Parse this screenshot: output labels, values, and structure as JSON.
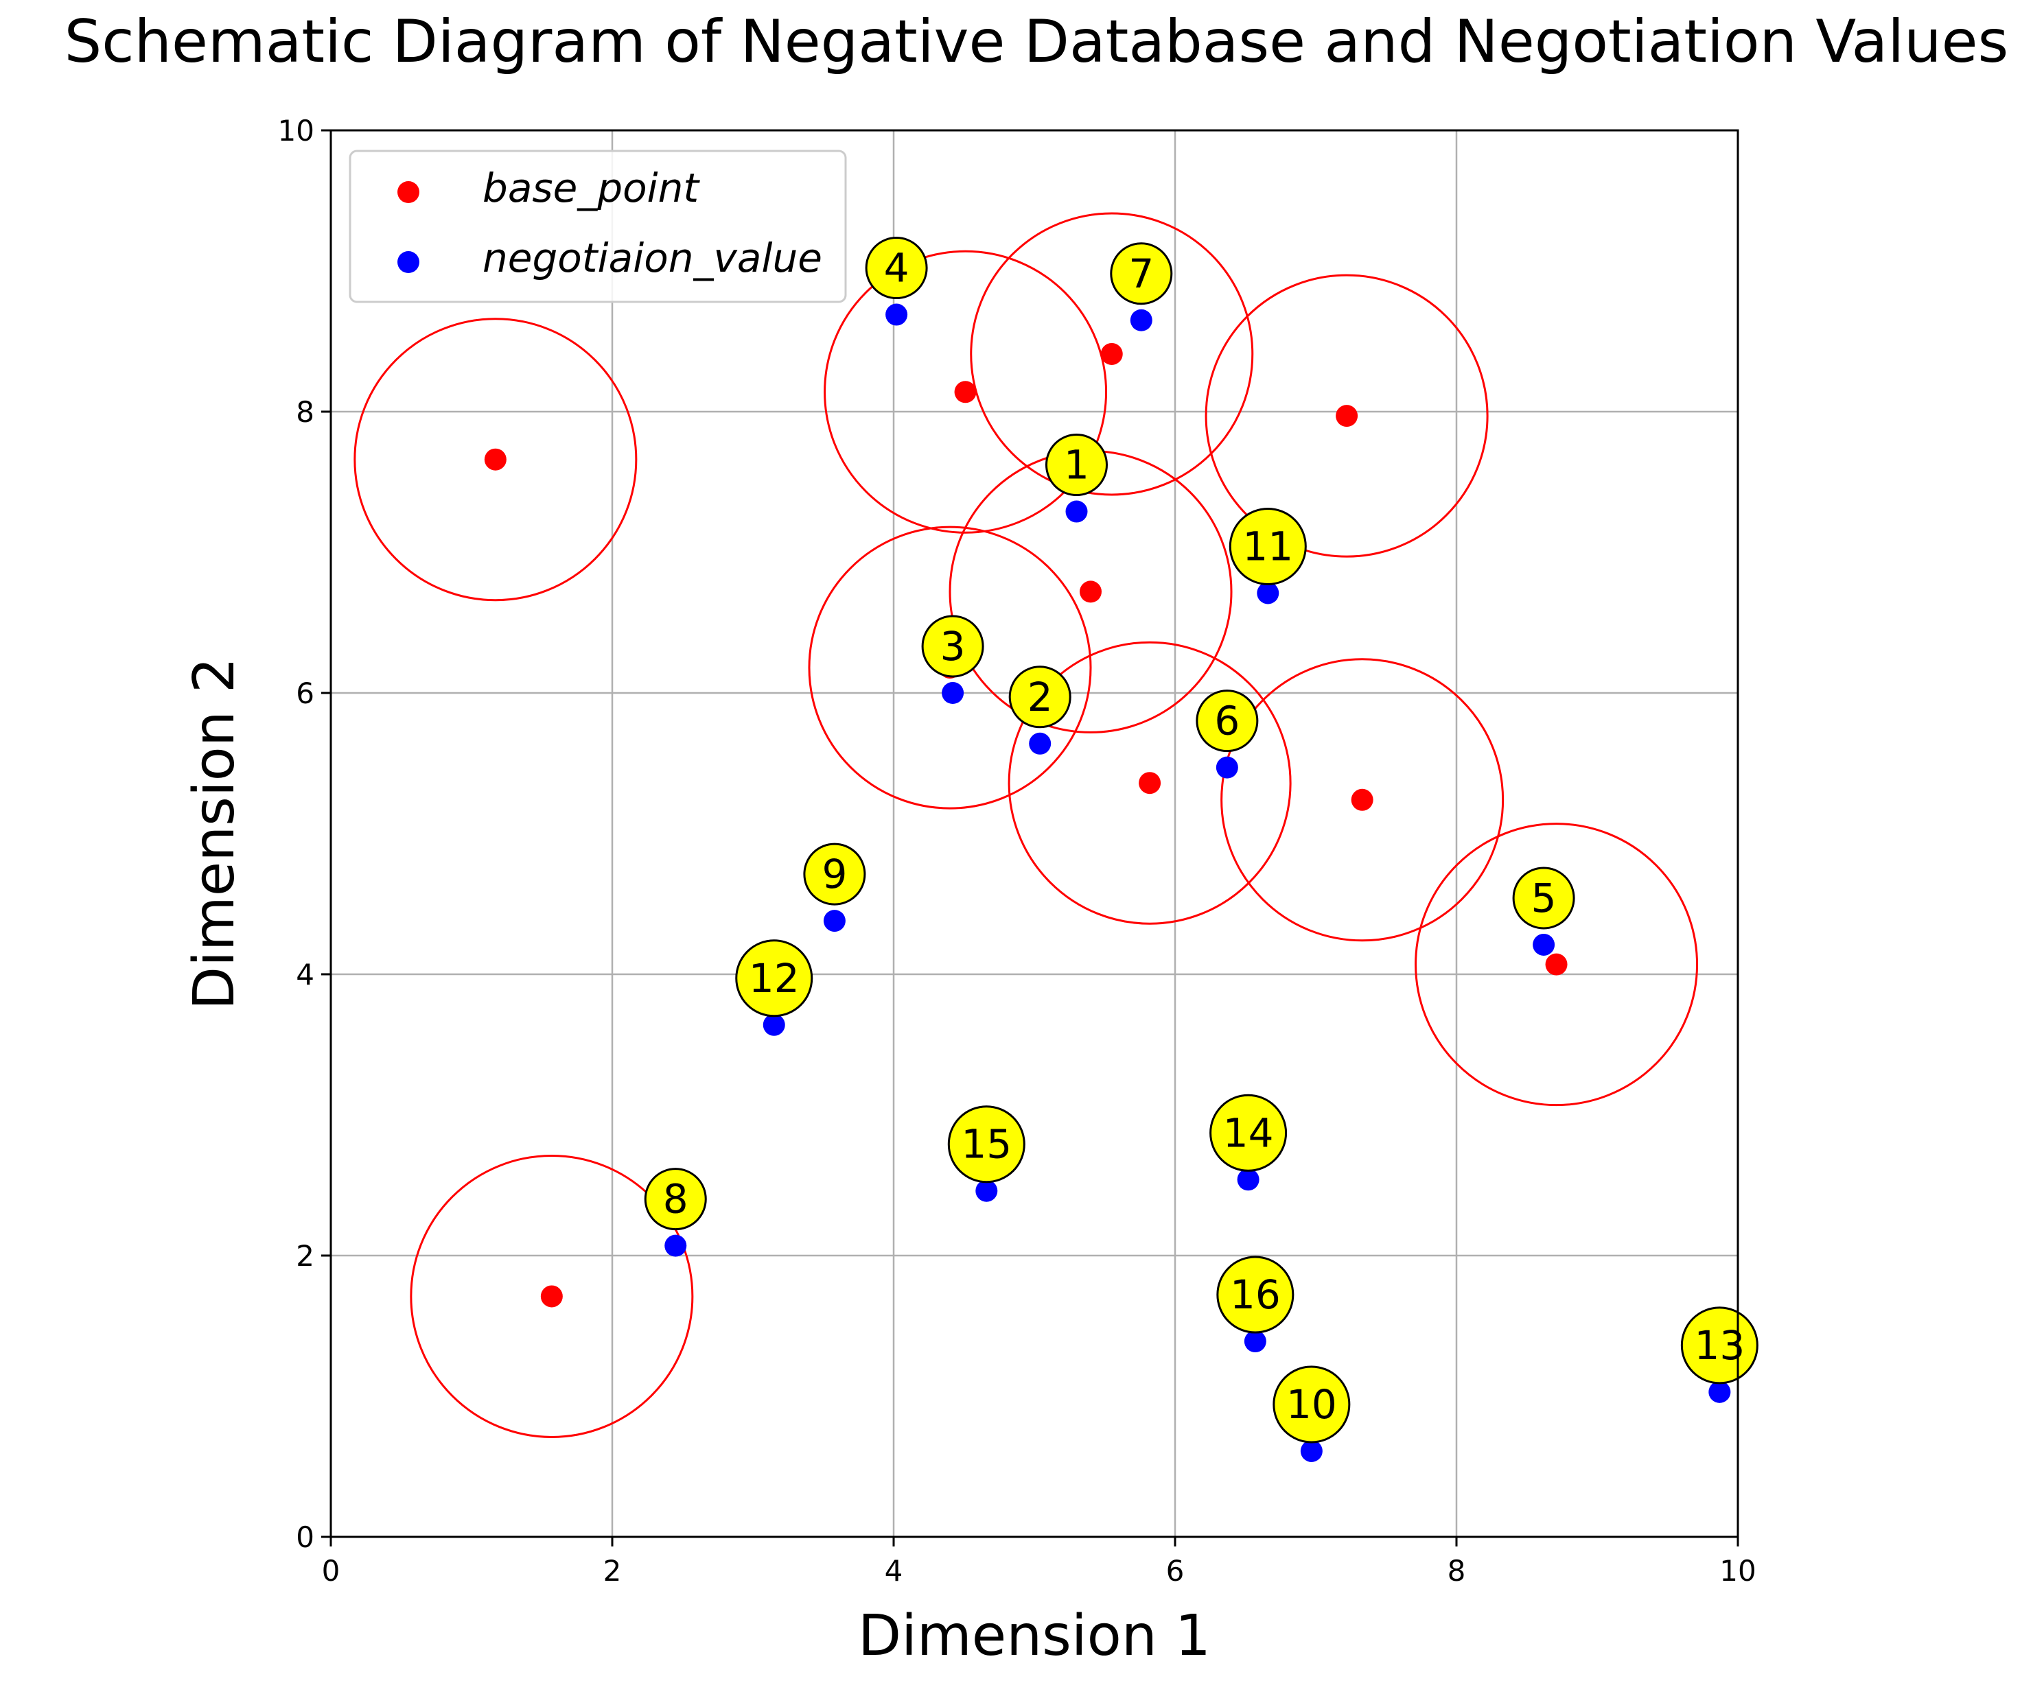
{
  "chart_data": {
    "type": "scatter",
    "title": "Schematic Diagram of Negative Database and Negotiation Values",
    "xlabel": "Dimension 1",
    "ylabel": "Dimension 2",
    "xlim": [
      0,
      10
    ],
    "ylim": [
      0,
      10
    ],
    "xticks": [
      "0",
      "2",
      "4",
      "6",
      "8",
      "10"
    ],
    "yticks": [
      "0",
      "2",
      "4",
      "6",
      "8",
      "10"
    ],
    "grid": true,
    "legend_position": "top-left",
    "colors": {
      "base_point": "#ff0000",
      "negotiation_value": "#0000ff",
      "circle": "#ff0000",
      "callout_fill": "#ffff00",
      "callout_edge": "#000000"
    },
    "radius": 1.0,
    "series": [
      {
        "name": "base_point",
        "points": [
          {
            "x": 1.17,
            "y": 7.66
          },
          {
            "x": 4.51,
            "y": 8.14
          },
          {
            "x": 5.55,
            "y": 8.41
          },
          {
            "x": 7.22,
            "y": 7.97
          },
          {
            "x": 5.4,
            "y": 6.72
          },
          {
            "x": 4.4,
            "y": 6.18
          },
          {
            "x": 5.82,
            "y": 5.36
          },
          {
            "x": 7.33,
            "y": 5.24
          },
          {
            "x": 8.71,
            "y": 4.07
          },
          {
            "x": 1.57,
            "y": 1.71
          }
        ]
      },
      {
        "name": "negotiaion_value",
        "points": [
          {
            "label": "1",
            "x": 5.3,
            "y": 7.29
          },
          {
            "label": "2",
            "x": 5.04,
            "y": 5.64
          },
          {
            "label": "3",
            "x": 4.42,
            "y": 6.0
          },
          {
            "label": "4",
            "x": 4.02,
            "y": 8.69
          },
          {
            "label": "5",
            "x": 8.62,
            "y": 4.21
          },
          {
            "label": "6",
            "x": 6.37,
            "y": 5.47
          },
          {
            "label": "7",
            "x": 5.76,
            "y": 8.65
          },
          {
            "label": "8",
            "x": 2.45,
            "y": 2.07
          },
          {
            "label": "9",
            "x": 3.58,
            "y": 4.38
          },
          {
            "label": "10",
            "x": 6.97,
            "y": 0.61
          },
          {
            "label": "11",
            "x": 6.66,
            "y": 6.71
          },
          {
            "label": "12",
            "x": 3.15,
            "y": 3.64
          },
          {
            "label": "13",
            "x": 9.87,
            "y": 1.03
          },
          {
            "label": "14",
            "x": 6.52,
            "y": 2.54
          },
          {
            "label": "15",
            "x": 4.66,
            "y": 2.46
          },
          {
            "label": "16",
            "x": 6.57,
            "y": 1.39
          }
        ]
      }
    ]
  }
}
